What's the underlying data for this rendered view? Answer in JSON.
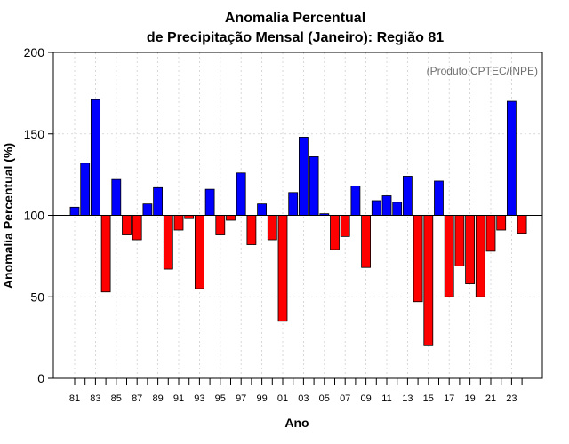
{
  "chart_data": {
    "type": "bar",
    "title": "Anomalia Percentual",
    "subtitle": "de Precipitação Mensal (Janeiro): Região 81",
    "xlabel": "Ano",
    "ylabel": "Anomalia Percentual (%)",
    "watermark": "(Produto:CPTEC/INPE)",
    "ylim": [
      0,
      200
    ],
    "yticks": [
      0,
      50,
      100,
      150,
      200
    ],
    "baseline": 100,
    "grid": true,
    "colors": {
      "above": "#0000ff",
      "below": "#ff0000"
    },
    "years": [
      "81",
      "82",
      "83",
      "84",
      "85",
      "86",
      "87",
      "88",
      "89",
      "90",
      "91",
      "92",
      "93",
      "94",
      "95",
      "96",
      "97",
      "98",
      "99",
      "00",
      "01",
      "02",
      "03",
      "04",
      "05",
      "06",
      "07",
      "08",
      "09",
      "10",
      "11",
      "12",
      "13",
      "14",
      "15",
      "16",
      "17",
      "18",
      "19",
      "20",
      "21",
      "22",
      "23",
      "24"
    ],
    "xtick_labels": [
      "81",
      "83",
      "85",
      "87",
      "89",
      "91",
      "93",
      "95",
      "97",
      "99",
      "01",
      "03",
      "05",
      "07",
      "09",
      "11",
      "13",
      "15",
      "17",
      "19",
      "21",
      "23"
    ],
    "values": [
      105,
      132,
      171,
      53,
      122,
      88,
      85,
      107,
      117,
      67,
      91,
      98,
      55,
      116,
      88,
      97,
      126,
      82,
      107,
      85,
      35,
      114,
      148,
      136,
      101,
      79,
      87,
      118,
      68,
      109,
      112,
      108,
      124,
      47,
      20,
      121,
      50,
      69,
      58,
      50,
      78,
      91,
      170,
      89
    ]
  }
}
